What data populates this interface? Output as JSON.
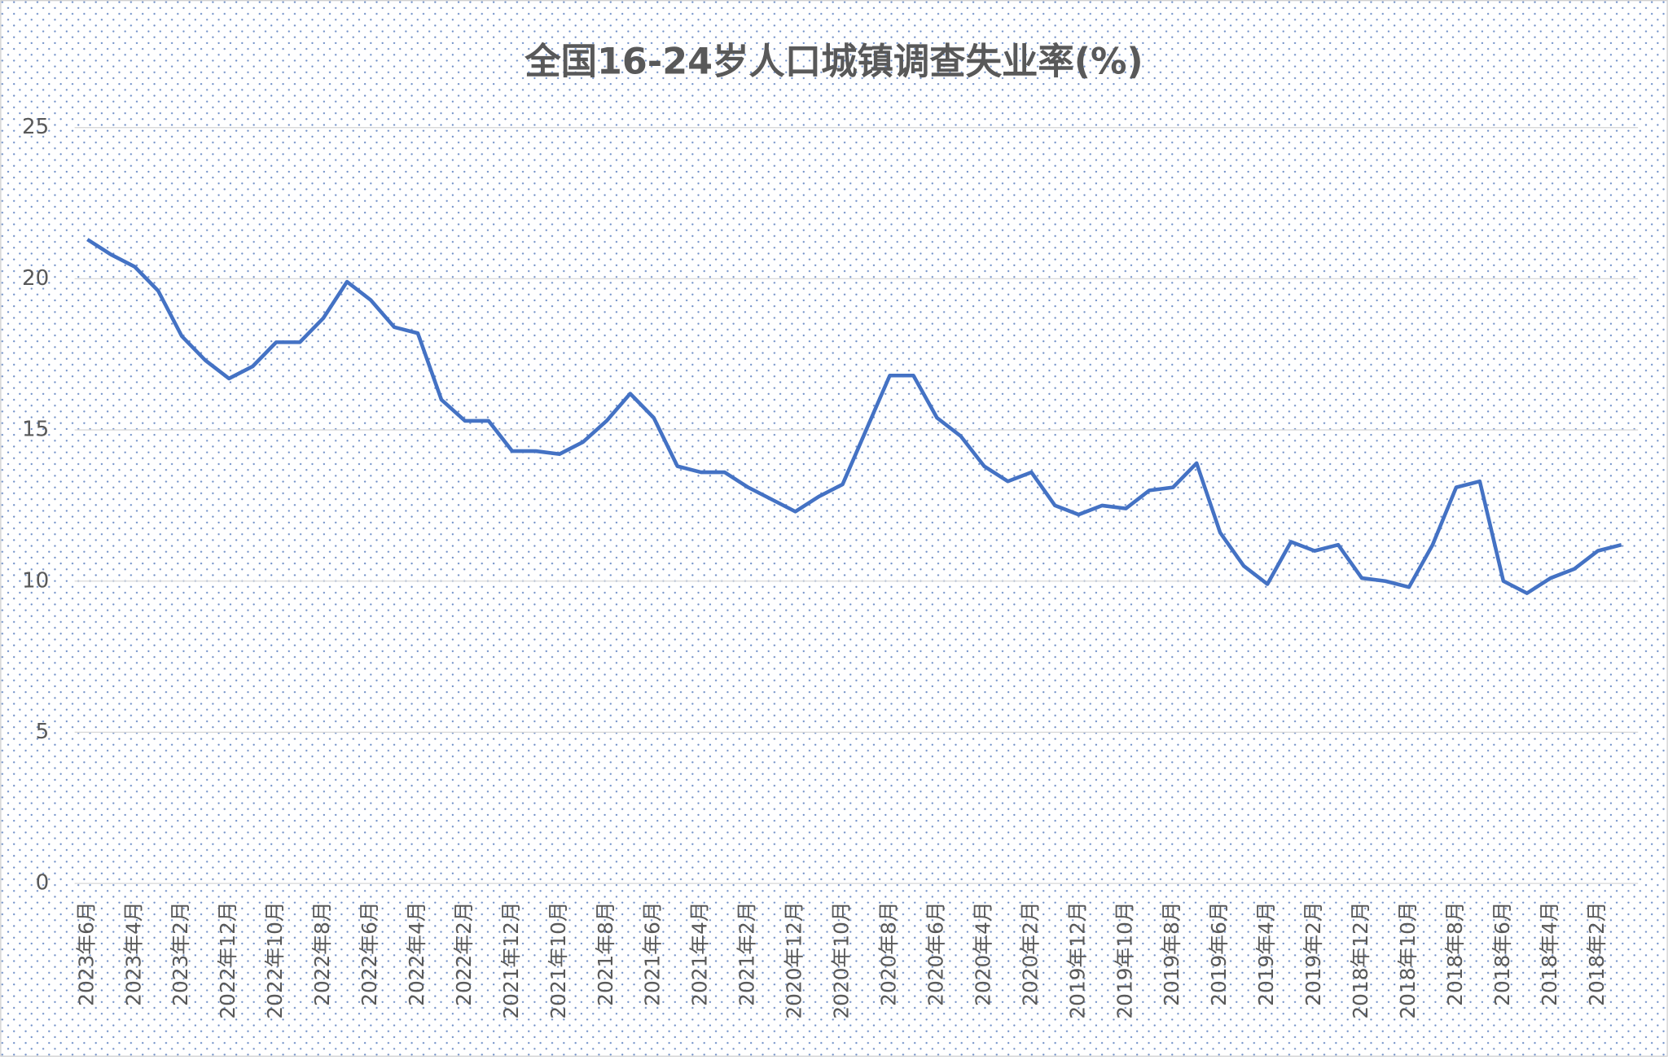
{
  "chart_data": {
    "type": "line",
    "title": "全国16-24岁人口城镇调查失业率(%)",
    "categories": [
      "2023年6月",
      null,
      "2023年4月",
      null,
      "2023年2月",
      null,
      "2022年12月",
      null,
      "2022年10月",
      null,
      "2022年8月",
      null,
      "2022年6月",
      null,
      "2022年4月",
      null,
      "2022年2月",
      null,
      "2021年12月",
      null,
      "2021年10月",
      null,
      "2021年8月",
      null,
      "2021年6月",
      null,
      "2021年4月",
      null,
      "2021年2月",
      null,
      "2020年12月",
      null,
      "2020年10月",
      null,
      "2020年8月",
      null,
      "2020年6月",
      null,
      "2020年4月",
      null,
      "2020年2月",
      null,
      "2019年12月",
      null,
      "2019年10月",
      null,
      "2019年8月",
      null,
      "2019年6月",
      null,
      "2019年4月",
      null,
      "2019年2月",
      null,
      "2018年12月",
      null,
      "2018年10月",
      null,
      "2018年8月",
      null,
      "2018年6月",
      null,
      "2018年4月",
      null,
      "2018年2月",
      null
    ],
    "values": [
      21.3,
      20.8,
      20.4,
      19.6,
      18.1,
      17.3,
      16.7,
      17.1,
      17.9,
      17.9,
      18.7,
      19.9,
      19.3,
      18.4,
      18.2,
      16.0,
      15.3,
      15.3,
      14.3,
      14.3,
      14.2,
      14.6,
      15.3,
      16.2,
      15.4,
      13.8,
      13.6,
      13.6,
      13.1,
      12.7,
      12.3,
      12.8,
      13.2,
      15.0,
      16.8,
      16.8,
      15.4,
      14.8,
      13.8,
      13.3,
      13.6,
      12.5,
      12.2,
      12.5,
      12.4,
      13.0,
      13.1,
      13.9,
      11.6,
      10.5,
      9.9,
      11.3,
      11.0,
      11.2,
      10.1,
      10.0,
      9.8,
      11.2,
      13.1,
      13.3,
      10.0,
      9.6,
      10.1,
      10.4,
      11.0,
      11.2
    ],
    "color": "#4472c4",
    "ylim": [
      0,
      25
    ],
    "yticks": [
      0,
      5,
      10,
      15,
      20,
      25
    ],
    "grid": true
  }
}
